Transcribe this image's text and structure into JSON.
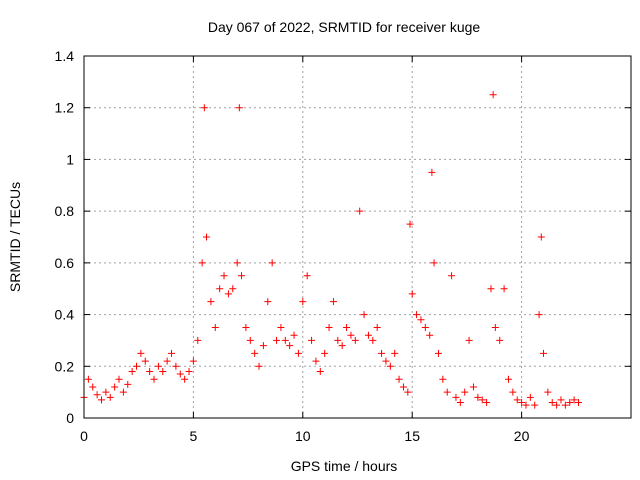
{
  "chart_data": {
    "type": "scatter",
    "title": "Day 067 of 2022, SRMTID for receiver kuge",
    "xlabel": "GPS time / hours",
    "ylabel": "SRMTID / TECUs",
    "xlim": [
      0,
      25
    ],
    "ylim": [
      0,
      1.4
    ],
    "x_ticks": [
      0,
      5,
      10,
      15,
      20
    ],
    "x_tick_labels": [
      "0",
      "5",
      "10",
      "15",
      "20"
    ],
    "y_ticks": [
      0,
      0.2,
      0.4,
      0.6,
      0.8,
      1.0,
      1.2,
      1.4
    ],
    "y_tick_labels": [
      "0",
      "0.2",
      "0.4",
      "0.6",
      "0.8",
      "1",
      "1.2",
      "1.4"
    ],
    "grid": true,
    "marker": "+",
    "series": [
      {
        "name": "SRMTID",
        "color": "#ff0000",
        "x": [
          0.0,
          0.2,
          0.4,
          0.6,
          0.8,
          1.0,
          1.2,
          1.4,
          1.6,
          1.8,
          2.0,
          2.2,
          2.4,
          2.6,
          2.8,
          3.0,
          3.2,
          3.4,
          3.6,
          3.8,
          4.0,
          4.2,
          4.4,
          4.6,
          4.8,
          5.0,
          5.2,
          5.4,
          5.5,
          5.6,
          5.8,
          6.0,
          6.2,
          6.4,
          6.6,
          6.8,
          7.0,
          7.1,
          7.2,
          7.4,
          7.6,
          7.8,
          8.0,
          8.2,
          8.4,
          8.6,
          8.8,
          9.0,
          9.2,
          9.4,
          9.6,
          9.8,
          10.0,
          10.2,
          10.4,
          10.6,
          10.8,
          11.0,
          11.2,
          11.4,
          11.6,
          11.8,
          12.0,
          12.2,
          12.4,
          12.6,
          12.8,
          13.0,
          13.2,
          13.4,
          13.6,
          13.8,
          14.0,
          14.2,
          14.4,
          14.6,
          14.8,
          14.9,
          15.0,
          15.2,
          15.4,
          15.6,
          15.8,
          15.9,
          16.0,
          16.2,
          16.4,
          16.6,
          16.8,
          17.0,
          17.2,
          17.4,
          17.6,
          17.8,
          18.0,
          18.2,
          18.4,
          18.6,
          18.7,
          18.8,
          19.0,
          19.2,
          19.4,
          19.6,
          19.8,
          20.0,
          20.2,
          20.4,
          20.6,
          20.8,
          20.9,
          21.0,
          21.2,
          21.4,
          21.6,
          21.8,
          22.0,
          22.2,
          22.4,
          22.6
        ],
        "y": [
          0.08,
          0.15,
          0.12,
          0.09,
          0.07,
          0.1,
          0.08,
          0.12,
          0.15,
          0.1,
          0.13,
          0.18,
          0.2,
          0.25,
          0.22,
          0.18,
          0.15,
          0.2,
          0.18,
          0.22,
          0.25,
          0.2,
          0.17,
          0.15,
          0.18,
          0.22,
          0.3,
          0.6,
          1.2,
          0.7,
          0.45,
          0.35,
          0.5,
          0.55,
          0.48,
          0.5,
          0.6,
          1.2,
          0.55,
          0.35,
          0.3,
          0.25,
          0.2,
          0.28,
          0.45,
          0.6,
          0.3,
          0.35,
          0.3,
          0.28,
          0.32,
          0.25,
          0.45,
          0.55,
          0.3,
          0.22,
          0.18,
          0.25,
          0.35,
          0.45,
          0.3,
          0.28,
          0.35,
          0.32,
          0.3,
          0.8,
          0.4,
          0.32,
          0.3,
          0.35,
          0.25,
          0.22,
          0.2,
          0.25,
          0.15,
          0.12,
          0.1,
          0.75,
          0.48,
          0.4,
          0.38,
          0.35,
          0.32,
          0.95,
          0.6,
          0.25,
          0.15,
          0.1,
          0.55,
          0.08,
          0.06,
          0.1,
          0.3,
          0.12,
          0.08,
          0.07,
          0.06,
          0.5,
          1.25,
          0.35,
          0.3,
          0.5,
          0.15,
          0.1,
          0.07,
          0.06,
          0.05,
          0.08,
          0.05,
          0.4,
          0.7,
          0.25,
          0.1,
          0.06,
          0.05,
          0.07,
          0.05,
          0.06,
          0.07,
          0.06
        ]
      }
    ]
  }
}
